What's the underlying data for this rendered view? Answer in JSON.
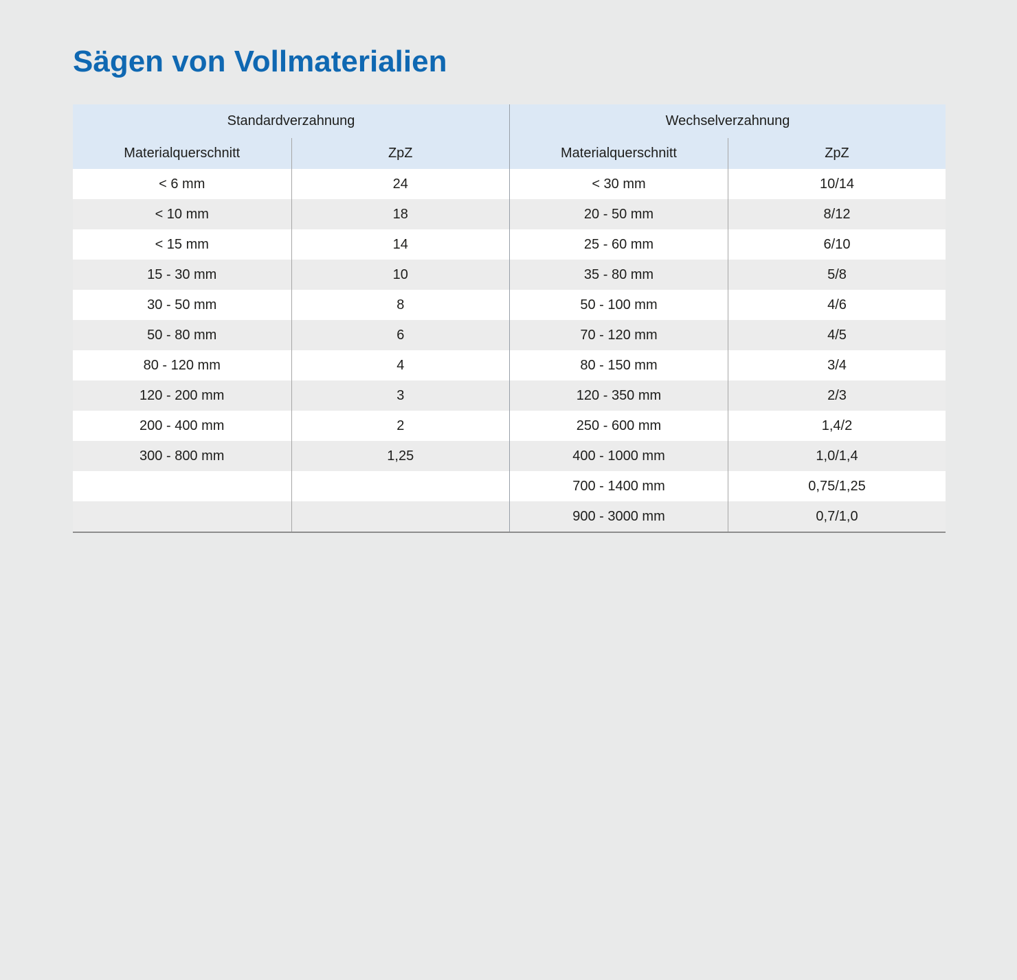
{
  "page": {
    "title": "Sägen von Vollmaterialien"
  },
  "colors": {
    "title_blue": "#0f68b2",
    "header_bg_blue": "#dce8f5",
    "row_stripe_gray": "#ececec",
    "row_white": "#ffffff",
    "page_bg": "#e9eaea",
    "divider_gray": "#98a0a9",
    "bottom_border_gray": "#8d8d8d"
  },
  "tables": [
    {
      "title": "Standardverzahnung",
      "columns": [
        "Materialquerschnitt",
        "ZpZ"
      ],
      "rows": [
        [
          "< 6 mm",
          "24"
        ],
        [
          "< 10 mm",
          "18"
        ],
        [
          "< 15 mm",
          "14"
        ],
        [
          "15 - 30 mm",
          "10"
        ],
        [
          "30 - 50 mm",
          "8"
        ],
        [
          "50 - 80 mm",
          "6"
        ],
        [
          "80 - 120 mm",
          "4"
        ],
        [
          "120 - 200 mm",
          "3"
        ],
        [
          "200 - 400 mm",
          "2"
        ],
        [
          "300 - 800 mm",
          "1,25"
        ],
        [
          "",
          ""
        ],
        [
          "",
          ""
        ]
      ]
    },
    {
      "title": "Wechselverzahnung",
      "columns": [
        "Materialquerschnitt",
        "ZpZ"
      ],
      "rows": [
        [
          "< 30 mm",
          "10/14"
        ],
        [
          "20 - 50 mm",
          "8/12"
        ],
        [
          "25 - 60 mm",
          "6/10"
        ],
        [
          "35 - 80 mm",
          "5/8"
        ],
        [
          "50 - 100 mm",
          "4/6"
        ],
        [
          "70 - 120 mm",
          "4/5"
        ],
        [
          "80 - 150 mm",
          "3/4"
        ],
        [
          "120 - 350 mm",
          "2/3"
        ],
        [
          "250 - 600 mm",
          "1,4/2"
        ],
        [
          "400 - 1000 mm",
          "1,0/1,4"
        ],
        [
          "700 - 1400 mm",
          "0,75/1,25"
        ],
        [
          "900 - 3000 mm",
          "0,7/1,0"
        ]
      ]
    }
  ]
}
